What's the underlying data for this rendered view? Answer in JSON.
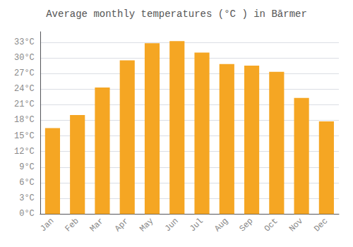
{
  "chart_data": {
    "type": "bar",
    "title": "Average monthly temperatures (°C ) in Bārmer",
    "categories": [
      "Jan",
      "Feb",
      "Mar",
      "Apr",
      "May",
      "Jun",
      "Jul",
      "Aug",
      "Sep",
      "Oct",
      "Nov",
      "Dec"
    ],
    "values": [
      16.5,
      19.0,
      24.3,
      29.5,
      32.8,
      33.2,
      31.0,
      28.8,
      28.5,
      27.3,
      22.3,
      17.8
    ],
    "color": "#F5A623",
    "ylim": [
      0,
      35
    ],
    "yticks": [
      {
        "value": 0,
        "label": "0°C"
      },
      {
        "value": 3,
        "label": "3°C"
      },
      {
        "value": 6,
        "label": "6°C"
      },
      {
        "value": 9,
        "label": "9°C"
      },
      {
        "value": 12,
        "label": "12°C"
      },
      {
        "value": 15,
        "label": "15°C"
      },
      {
        "value": 18,
        "label": "18°C"
      },
      {
        "value": 21,
        "label": "21°C"
      },
      {
        "value": 24,
        "label": "24°C"
      },
      {
        "value": 27,
        "label": "27°C"
      },
      {
        "value": 30,
        "label": "30°C"
      },
      {
        "value": 33,
        "label": "33°C"
      }
    ],
    "grid": true
  }
}
